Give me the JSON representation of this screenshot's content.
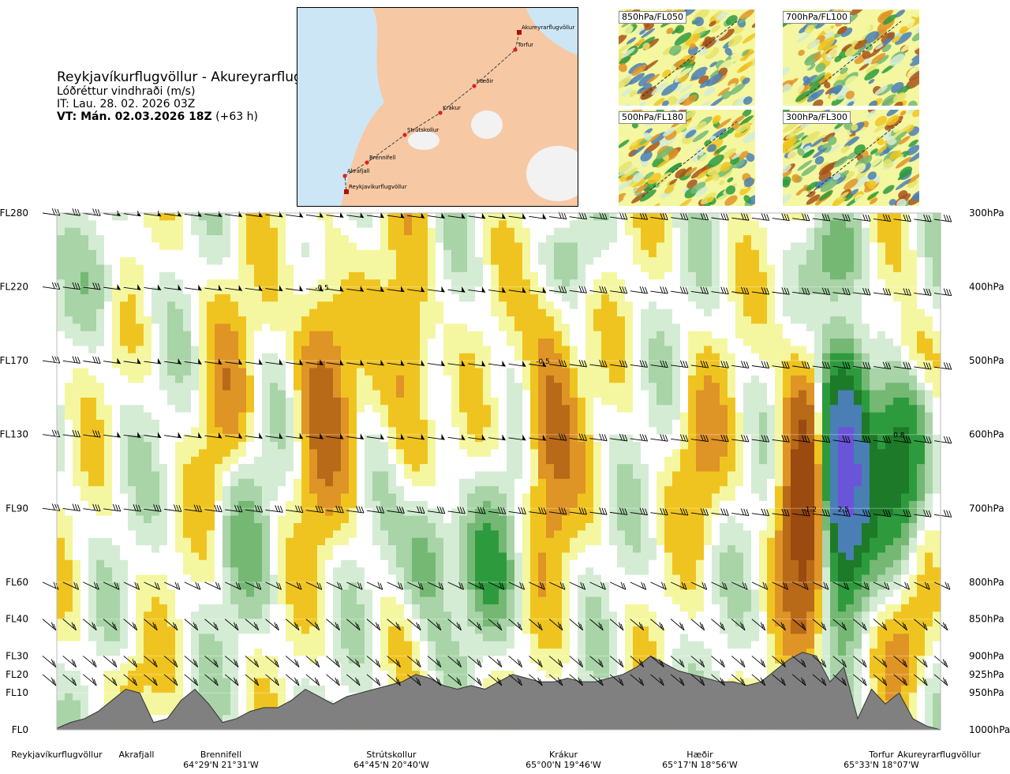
{
  "header": {
    "route": "Reykjavíkurflugvöllur - Akureyrarflugvöllur",
    "variable": "Lóðréttur vindhraði (m/s)",
    "init_time": "IT: Lau. 28. 02. 2026 03Z",
    "valid_time_bold": "VT: Mán. 02.03.2026 18Z",
    "valid_offset": "(+63 h)"
  },
  "route_map": {
    "points": [
      {
        "name": "Akureyrarflugvöllur"
      },
      {
        "name": "Torfur"
      },
      {
        "name": "Hæðir"
      },
      {
        "name": "Krákur"
      },
      {
        "name": "Strútskollur"
      },
      {
        "name": "Brennifell"
      },
      {
        "name": "Akrafjall"
      },
      {
        "name": "Reykjavíkurflugvöllur"
      }
    ],
    "colors": {
      "sea": "#cde6f5",
      "land": "#f6c9a4",
      "line": "#444444",
      "point": "#e02020"
    }
  },
  "level_maps": [
    {
      "label": "850hPa/FL050"
    },
    {
      "label": "700hPa/FL100"
    },
    {
      "label": "500hPa/FL180"
    },
    {
      "label": "300hPa/FL300"
    }
  ],
  "chart_data": {
    "type": "heatmap",
    "title": "Lóðréttur vindhraði (m/s)",
    "flight_levels": [
      "FL280",
      "FL220",
      "FL170",
      "FL130",
      "FL90",
      "FL60",
      "FL40",
      "FL30",
      "FL20",
      "FL10",
      "FL0"
    ],
    "pressure_levels": [
      "300hPa",
      "400hPa",
      "500hPa",
      "600hPa",
      "700hPa",
      "800hPa",
      "850hPa",
      "900hPa",
      "925hPa",
      "950hPa",
      "1000hPa"
    ],
    "pressure_values": [
      300,
      400,
      500,
      600,
      700,
      800,
      850,
      900,
      925,
      950,
      1000
    ],
    "locations": [
      {
        "name": "Reykjavíkurflugvöllur",
        "coord": ""
      },
      {
        "name": "Akrafjall",
        "coord": ""
      },
      {
        "name": "Brennifell",
        "coord": "64°29'N 21°31'W"
      },
      {
        "name": "Strútskollur",
        "coord": "64°45'N 20°40'W"
      },
      {
        "name": "Krákur",
        "coord": "65°00'N 19°46'W"
      },
      {
        "name": "Hæðir",
        "coord": "65°17'N 18°56'W"
      },
      {
        "name": "Torfur",
        "coord": "65°33'N 18°07'W"
      },
      {
        "name": "Akureyrarflugvöllur",
        "coord": ""
      }
    ],
    "contour_labels": [
      {
        "text": "-0.5",
        "pos": 0.3,
        "p": 400
      },
      {
        "text": "-0.5",
        "pos": 0.55,
        "p": 500
      },
      {
        "text": "-1.2",
        "pos": 0.852,
        "p": 700
      },
      {
        "text": "2.5",
        "pos": 0.89,
        "p": 700
      },
      {
        "text": "0.8",
        "pos": 0.953,
        "p": 600
      }
    ],
    "features": [
      {
        "pos": 0.3,
        "p_top": 330,
        "p_bot": 760,
        "value": -0.6
      },
      {
        "pos": 0.19,
        "p_top": 330,
        "p_bot": 760,
        "value": -0.3
      },
      {
        "pos": 0.4,
        "p_top": 290,
        "p_bot": 730,
        "value": -0.4
      },
      {
        "pos": 0.56,
        "p_top": 360,
        "p_bot": 800,
        "value": -0.6
      },
      {
        "pos": 0.73,
        "p_top": 480,
        "p_bot": 760,
        "value": -0.3
      },
      {
        "pos": 0.85,
        "p_top": 470,
        "p_bot": 900,
        "value": -1.3
      },
      {
        "pos": 0.89,
        "p_top": 470,
        "p_bot": 830,
        "value": 2.6
      },
      {
        "pos": 0.953,
        "p_top": 520,
        "p_bot": 780,
        "value": 1.0
      },
      {
        "pos": 0.97,
        "p_top": 420,
        "p_bot": 560,
        "value": -0.3
      },
      {
        "pos": 0.05,
        "p_top": 320,
        "p_bot": 470,
        "value": 0.2
      },
      {
        "pos": 0.21,
        "p_top": 580,
        "p_bot": 880,
        "value": 0.3
      },
      {
        "pos": 0.42,
        "p_top": 640,
        "p_bot": 880,
        "value": 0.5
      },
      {
        "pos": 0.49,
        "p_top": 660,
        "p_bot": 890,
        "value": 0.5
      },
      {
        "pos": 0.88,
        "p_top": 300,
        "p_bot": 420,
        "value": 0.4
      },
      {
        "pos": 0.58,
        "p_top": 300,
        "p_bot": 420,
        "value": 0.2
      },
      {
        "pos": 0.96,
        "p_top": 800,
        "p_bot": 980,
        "value": -0.3
      },
      {
        "pos": 0.08,
        "p_top": 880,
        "p_bot": 980,
        "value": -0.2
      }
    ],
    "colorscale": [
      {
        "max": -1.2,
        "color": "#8c1a1a"
      },
      {
        "max": -0.8,
        "color": "#9b4a10"
      },
      {
        "max": -0.5,
        "color": "#b86a18"
      },
      {
        "max": -0.3,
        "color": "#df9426"
      },
      {
        "max": -0.15,
        "color": "#f0c420"
      },
      {
        "max": -0.05,
        "color": "#f4f7a0"
      },
      {
        "max": 0.05,
        "color": "#ffffff"
      },
      {
        "max": 0.15,
        "color": "#d4ecd4"
      },
      {
        "max": 0.3,
        "color": "#a8d4a8"
      },
      {
        "max": 0.5,
        "color": "#74b874"
      },
      {
        "max": 0.8,
        "color": "#2e9a3e"
      },
      {
        "max": 1.2,
        "color": "#1d7a28"
      },
      {
        "max": 2.0,
        "color": "#4a7fb5"
      },
      {
        "max": 99,
        "color": "#6a55d8"
      }
    ],
    "terrain_height_hpa": [
      998,
      990,
      985,
      975,
      960,
      945,
      950,
      990,
      985,
      960,
      945,
      965,
      990,
      985,
      975,
      970,
      970,
      960,
      945,
      955,
      965,
      955,
      950,
      945,
      940,
      935,
      925,
      930,
      940,
      945,
      940,
      945,
      935,
      925,
      930,
      935,
      935,
      930,
      935,
      935,
      930,
      925,
      915,
      900,
      910,
      920,
      925,
      930,
      935,
      935,
      940,
      935,
      920,
      905,
      895,
      900,
      935,
      915,
      985,
      945,
      965,
      950,
      985,
      995,
      1000
    ],
    "wind_barb_levels": [
      300,
      400,
      500,
      600,
      700,
      800,
      850,
      900,
      925
    ]
  }
}
